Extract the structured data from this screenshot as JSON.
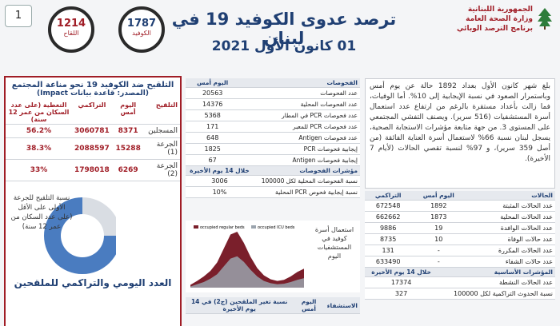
{
  "header": {
    "page_number": "1",
    "title": "ترصد عدوى الكوفيد 19 في لبنان",
    "date": "01 كانون الأول 2021",
    "logo_lines": [
      "الجمهورية اللبنانية",
      "وزارة الصحة العامة",
      "برنامج الترصد الوبائي"
    ],
    "badges": [
      {
        "value": "1787",
        "label": "الكوفيد"
      },
      {
        "value": "1214",
        "label": "اللقاح"
      }
    ]
  },
  "vaccination": {
    "title": "التلقيح ضد الكوفيد 19 نحو مناعة المجتمع",
    "source": "(المصدر: قاعدة بيانات Impact)",
    "headers": [
      "التلقيح",
      "اليوم أمس",
      "التراكمي",
      "التغطية (على عدد السكان من عمر 12 سنة)"
    ],
    "rows": [
      [
        "المسجلين",
        "8371",
        "3060781",
        "56.2%"
      ],
      [
        "الجرعة (1)",
        "15288",
        "2088597",
        "38.3%"
      ],
      [
        "الجرعة (2)",
        "6269",
        "1798018",
        "33%"
      ]
    ],
    "donut_caption": "نسبة التلقيح للجرعة الأولى على الأقل (على عدد السكان من عمر 12 سنة)",
    "footer": "العدد اليومي والتراكمي للملقحين"
  },
  "chart_data": {
    "type": "pie",
    "values": [
      75,
      25
    ],
    "colors": [
      "#4a7cc0",
      "#d9dde3"
    ]
  },
  "tests": {
    "headers": [
      "الفحوصات",
      "اليوم أمس"
    ],
    "rows": [
      [
        "عدد الفحوصات",
        "20563"
      ],
      [
        "عدد الفحوصات المحلية",
        "14376"
      ],
      [
        "عدد فحوصات PCR في المطار",
        "5368"
      ],
      [
        "عدد فحوصات PCR للمعبر",
        "171"
      ],
      [
        "عدد فحوصات Antigen",
        "648"
      ],
      [
        "إيجابية فحوصات PCR",
        "1825"
      ],
      [
        "إيجابية فحوصات Antigen",
        "67"
      ]
    ],
    "indicator_headers": [
      "مؤشرات الفحوصات",
      "خلال 14 يوم الأخيرة"
    ],
    "indicator_rows": [
      [
        "نسبة الفحوصات المحلية لكل 100000",
        "3006"
      ],
      [
        "نسبة إيجابية فحوص PCR المحلية",
        "10%"
      ]
    ]
  },
  "beds": {
    "caption": "استعمال أسرة كوفيد في المستشفيات",
    "today": "اليوم",
    "series": [
      {
        "name": "occupied regular beds",
        "color": "#7a1f2b",
        "values": [
          5,
          12,
          20,
          30,
          45,
          70,
          95,
          100,
          80,
          55,
          35,
          22,
          15,
          12,
          14,
          20,
          28,
          34
        ]
      },
      {
        "name": "occupied ICU beds",
        "color": "#9aa3ad",
        "values": [
          2,
          6,
          10,
          16,
          24,
          38,
          52,
          56,
          46,
          32,
          20,
          12,
          8,
          6,
          7,
          10,
          14,
          17
        ]
      }
    ]
  },
  "hospital": {
    "headers": [
      "الاستشفاء",
      "اليوم أمس",
      "نسبة تغير الملقحين (ج2) في 14 يوم الأخيرة"
    ]
  },
  "summary": "بلغ شهر كانون الأول بعداد 1892 حالة عن يوم أمس وباستمرار الصعود في نسبة الإيجابية إلى 10%. أما الوفيات، فما زالت بأعداد مستقرة بالرغم من ارتفاع عدد استعمال أسرة المستشفيات (516 سرير). ويصنف التفشي المجتمعي على المستوى 3. من جهة متابعة مؤشرات الاستجابة الصحية، يسجل لبنان نسبة 66% لاستعمال أسرة العناية الفائقة (من أصل 359 سرير)، و 97% لنسبة تقصي الحالات (لأيام 7 الأخيرة).",
  "cases": {
    "headers": [
      "الحالات",
      "اليوم أمس",
      "التراكمي"
    ],
    "rows": [
      [
        "عدد الحالات المثبتة",
        "1892",
        "672548"
      ],
      [
        "عدد الحالات المحلية",
        "1873",
        "662662"
      ],
      [
        "عدد الحالات الوافدة",
        "19",
        "9886"
      ],
      [
        "عدد حالات الوفاة",
        "10",
        "8735"
      ],
      [
        "عدد الحالات المكررة",
        "-",
        "131"
      ],
      [
        "عدد حالات الشفاء",
        "-",
        "633490"
      ]
    ],
    "indicator_headers": [
      "المؤشرات الأساسية",
      "خلال 14 يوم الأخيرة"
    ],
    "indicator_rows": [
      [
        "عدد الحالات النشطة",
        "17374"
      ],
      [
        "نسبة الحدوث التراكمية لكل 100000",
        "327"
      ]
    ]
  }
}
